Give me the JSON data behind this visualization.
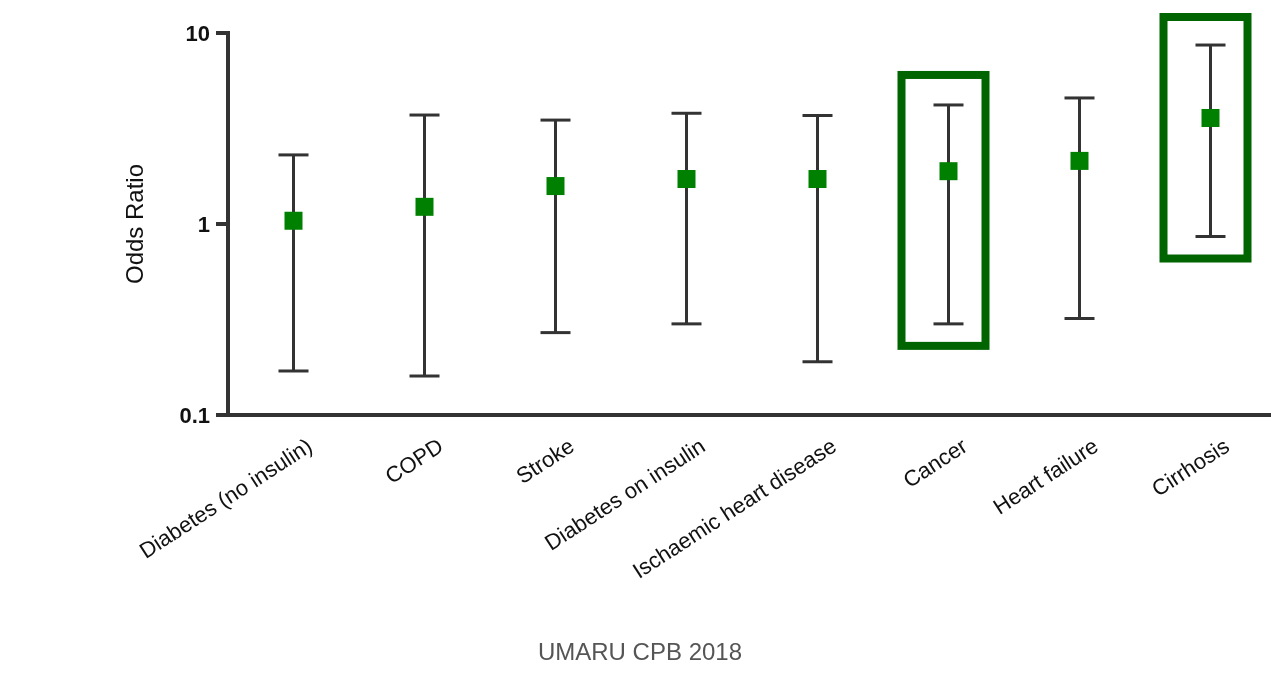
{
  "chart_data": {
    "type": "scatter",
    "ylabel": "Odds Ratio",
    "log": "y",
    "ylim": [
      0.1,
      10
    ],
    "yticks": [
      0.1,
      1,
      10
    ],
    "grid": false,
    "marker": "square",
    "categories": [
      "Diabetes (no insulin)",
      "COPD",
      "Stroke",
      "Diabetes on insulin",
      "Ischaemic heart disease",
      "Cancer",
      "Heart failure",
      "Cirrhosis"
    ],
    "series": [
      {
        "color": "#008000",
        "values": [
          1.04,
          1.23,
          1.58,
          1.72,
          1.72,
          1.89,
          2.14,
          3.59
        ],
        "errors": [
          [
            0.17,
            2.3
          ],
          [
            0.16,
            3.72
          ],
          [
            0.27,
            3.5
          ],
          [
            0.3,
            3.8
          ],
          [
            0.19,
            3.7
          ],
          [
            0.3,
            4.2
          ],
          [
            0.32,
            4.57
          ],
          [
            0.86,
            8.65
          ]
        ]
      }
    ],
    "annotations": [
      "UMARU CPB 2018"
    ]
  }
}
